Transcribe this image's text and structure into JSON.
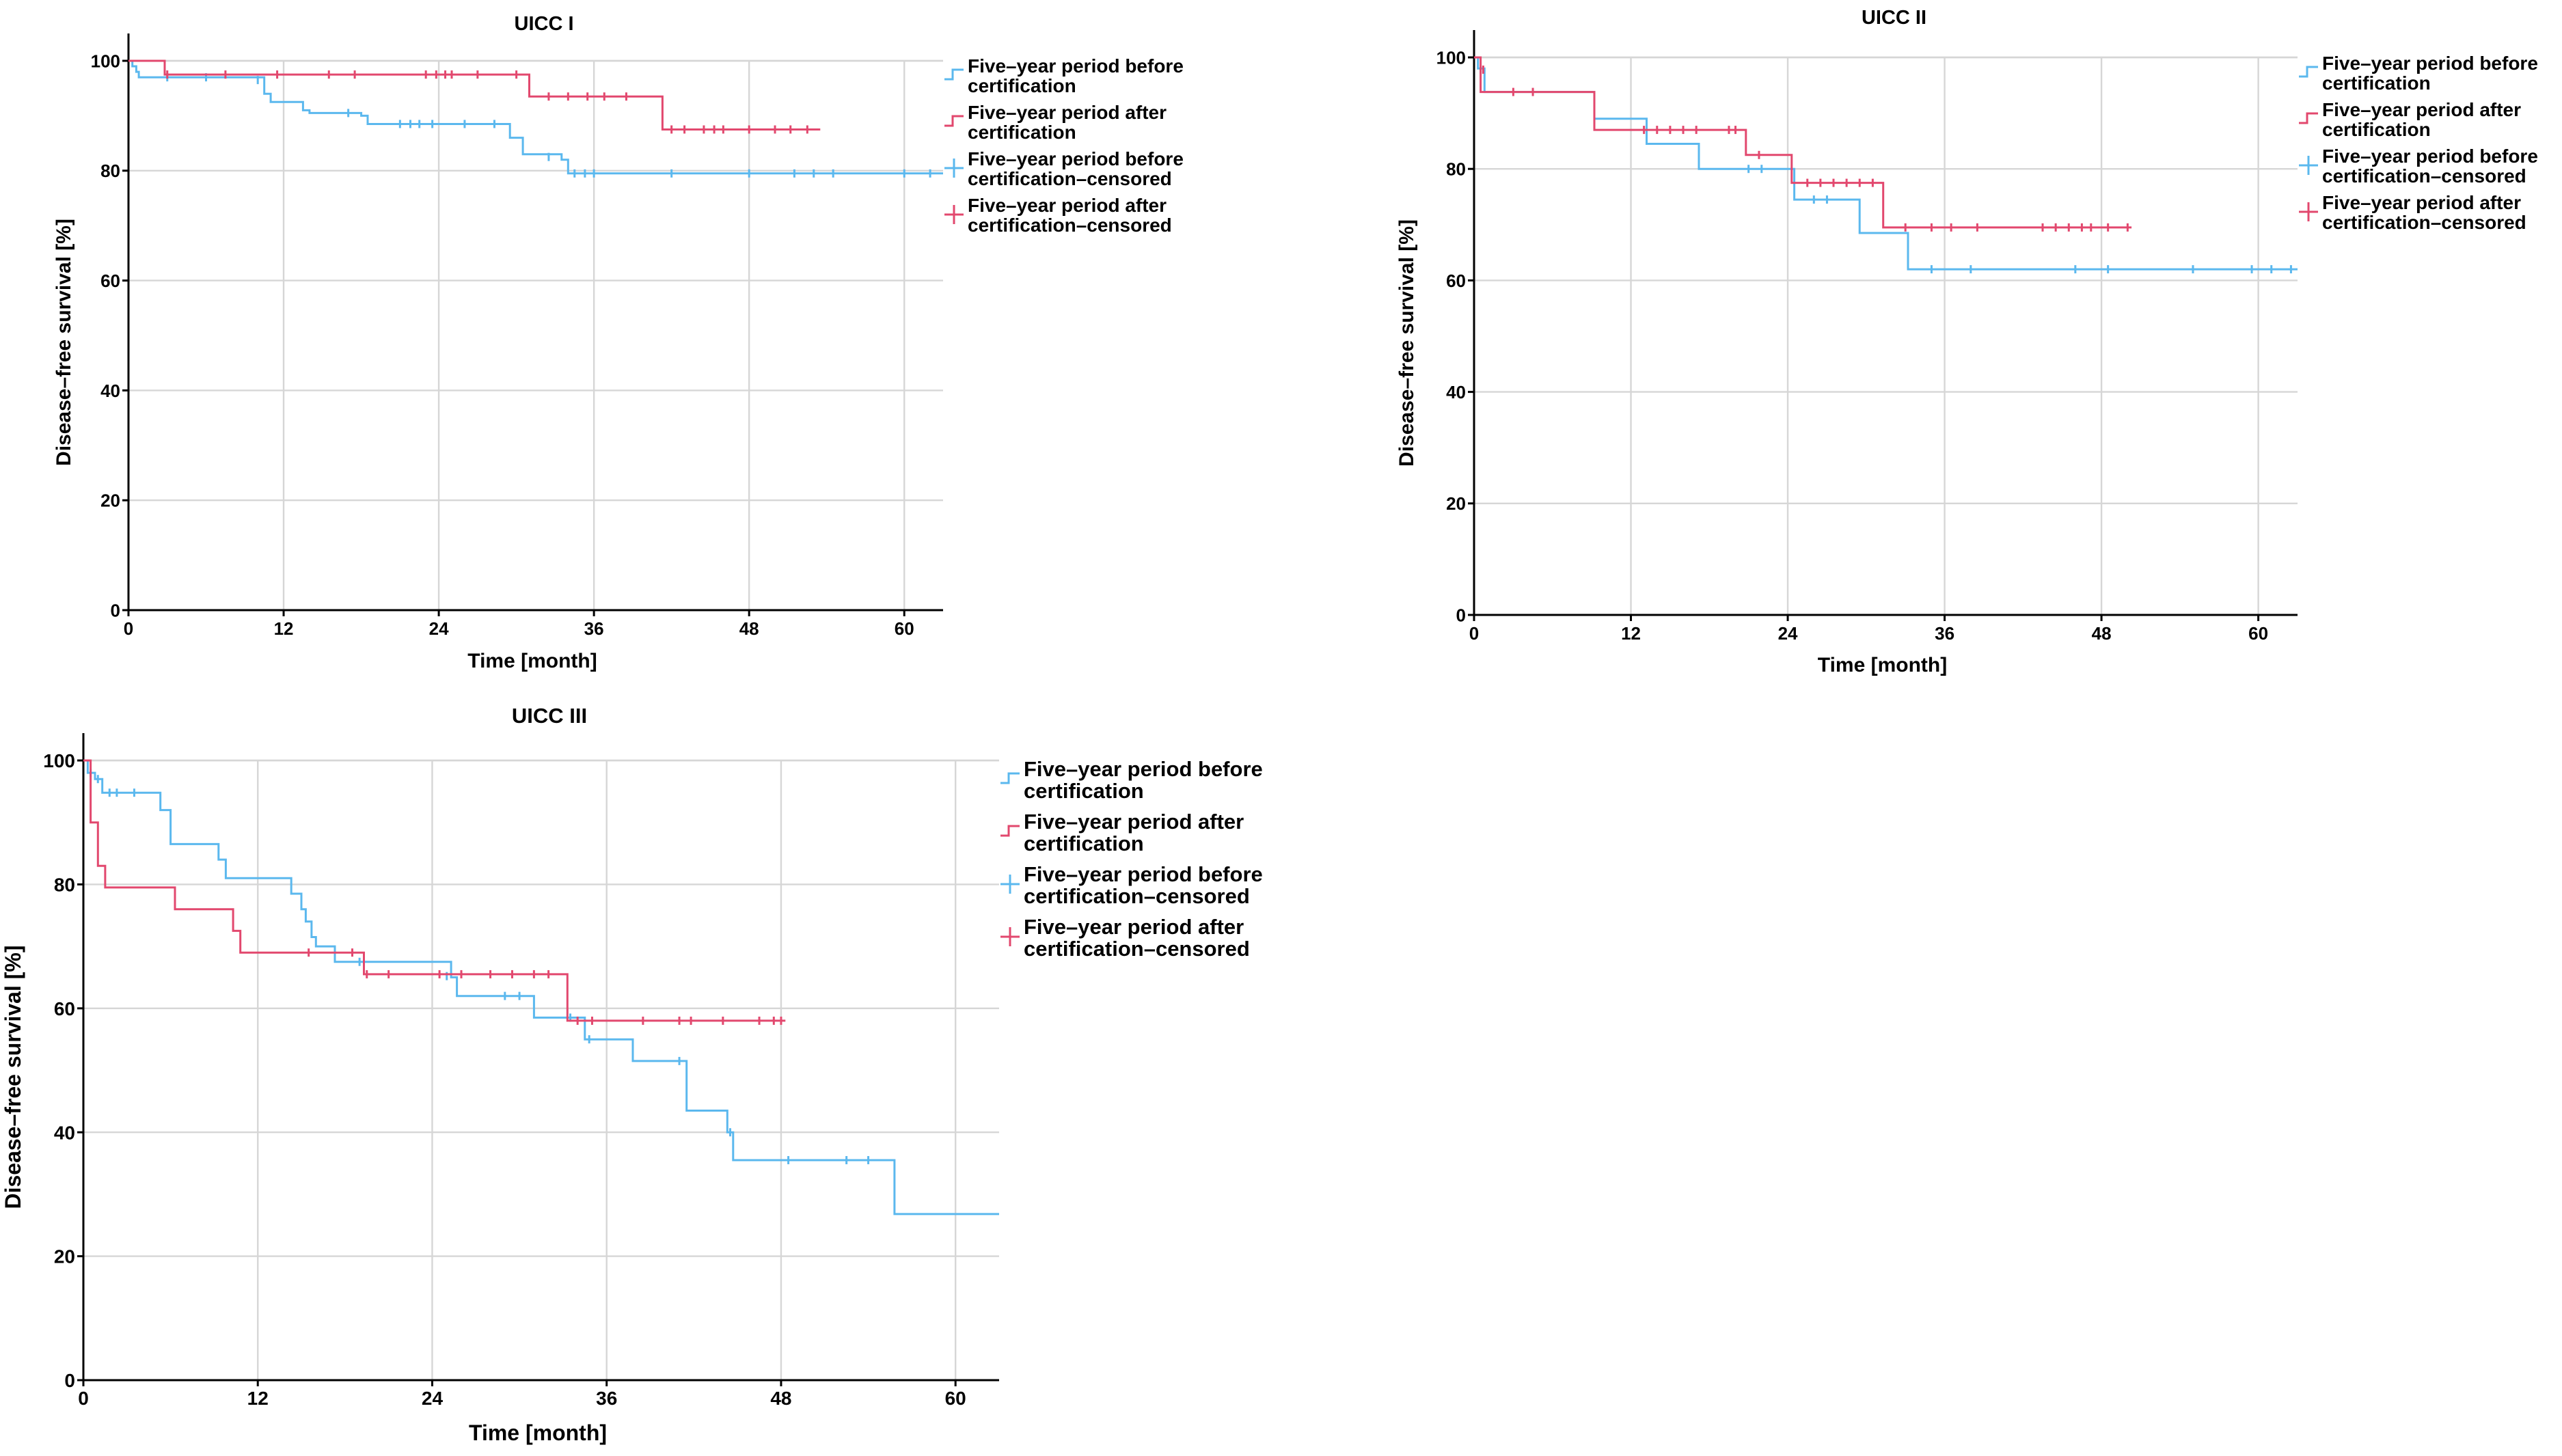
{
  "colors": {
    "before": "#5bb8ee",
    "after": "#e2486e"
  },
  "legend": [
    {
      "key": "before",
      "kind": "line",
      "lines": [
        "Five–year period before",
        "certification"
      ]
    },
    {
      "key": "after",
      "kind": "line",
      "lines": [
        "Five–year period after",
        "certification"
      ]
    },
    {
      "key": "before",
      "kind": "censor",
      "lines": [
        "Five–year period before",
        "certification–censored"
      ]
    },
    {
      "key": "after",
      "kind": "censor",
      "lines": [
        "Five–year period after",
        "certification–censored"
      ]
    }
  ],
  "chart_data": [
    {
      "type": "line",
      "title": "UICC I",
      "xlabel": "Time [month]",
      "ylabel": "Disease–free survival [%]",
      "xlim": [
        0,
        63
      ],
      "ylim": [
        0,
        100
      ],
      "xticks": [
        0,
        12,
        24,
        36,
        48,
        60
      ],
      "yticks": [
        0,
        20,
        40,
        60,
        80,
        100
      ],
      "grid": true,
      "legend_position": "right",
      "series": [
        {
          "name": "Five–year period before certification",
          "key": "before",
          "steps": [
            [
              0,
              100
            ],
            [
              0.3,
              99
            ],
            [
              0.6,
              98
            ],
            [
              0.8,
              97
            ],
            [
              9.5,
              97
            ],
            [
              10.5,
              94
            ],
            [
              11,
              92.5
            ],
            [
              13.5,
              91
            ],
            [
              14,
              90.5
            ],
            [
              18,
              90
            ],
            [
              18.5,
              88.5
            ],
            [
              28.5,
              88.5
            ],
            [
              29.5,
              86
            ],
            [
              30.5,
              83
            ],
            [
              33.5,
              82
            ],
            [
              34,
              79.5
            ],
            [
              63,
              79.5
            ]
          ],
          "censored": [
            [
              3,
              97
            ],
            [
              6,
              97
            ],
            [
              10,
              96.5
            ],
            [
              17,
              90.5
            ],
            [
              21,
              88.5
            ],
            [
              21.8,
              88.5
            ],
            [
              22.5,
              88.5
            ],
            [
              23.5,
              88.5
            ],
            [
              26,
              88.5
            ],
            [
              28.3,
              88.5
            ],
            [
              32.5,
              82.5
            ],
            [
              34.5,
              79.5
            ],
            [
              35.3,
              79.5
            ],
            [
              36,
              79.5
            ],
            [
              42,
              79.5
            ],
            [
              48,
              79.5
            ],
            [
              51.5,
              79.5
            ],
            [
              53,
              79.5
            ],
            [
              54.5,
              79.5
            ],
            [
              60,
              79.5
            ],
            [
              62,
              79.5
            ]
          ]
        },
        {
          "name": "Five–year period after certification",
          "key": "after",
          "steps": [
            [
              0,
              100
            ],
            [
              2.5,
              100
            ],
            [
              2.8,
              97.5
            ],
            [
              30.5,
              97.5
            ],
            [
              31,
              93.5
            ],
            [
              41,
              93.5
            ],
            [
              41.3,
              87.5
            ],
            [
              53.5,
              87.5
            ]
          ],
          "censored": [
            [
              3,
              97.5
            ],
            [
              7.5,
              97.5
            ],
            [
              11.5,
              97.5
            ],
            [
              15.5,
              97.5
            ],
            [
              17.5,
              97.5
            ],
            [
              23,
              97.5
            ],
            [
              23.8,
              97.5
            ],
            [
              24.5,
              97.5
            ],
            [
              25,
              97.5
            ],
            [
              27,
              97.5
            ],
            [
              30,
              97.5
            ],
            [
              32.5,
              93.5
            ],
            [
              34,
              93.5
            ],
            [
              35.5,
              93.5
            ],
            [
              36.8,
              93.5
            ],
            [
              38.5,
              93.5
            ],
            [
              42,
              87.5
            ],
            [
              43,
              87.5
            ],
            [
              44.5,
              87.5
            ],
            [
              45.3,
              87.5
            ],
            [
              46,
              87.5
            ],
            [
              48,
              87.5
            ],
            [
              50,
              87.5
            ],
            [
              51.2,
              87.5
            ],
            [
              52.5,
              87.5
            ]
          ]
        }
      ]
    },
    {
      "type": "line",
      "title": "UICC II",
      "xlabel": "Time [month]",
      "ylabel": "Disease–free survival [%]",
      "xlim": [
        0,
        63
      ],
      "ylim": [
        0,
        100
      ],
      "xticks": [
        0,
        12,
        24,
        36,
        48,
        60
      ],
      "yticks": [
        0,
        20,
        40,
        60,
        80,
        100
      ],
      "grid": true,
      "legend_position": "right",
      "series": [
        {
          "name": "Five–year period before certification",
          "key": "before",
          "steps": [
            [
              0,
              100
            ],
            [
              0.3,
              98
            ],
            [
              0.8,
              93.8
            ],
            [
              9,
              93.8
            ],
            [
              9.2,
              89
            ],
            [
              13,
              89
            ],
            [
              13.2,
              84.5
            ],
            [
              17,
              84.5
            ],
            [
              17.2,
              80
            ],
            [
              24.2,
              80
            ],
            [
              24.5,
              74.5
            ],
            [
              29.2,
              74.5
            ],
            [
              29.5,
              68.5
            ],
            [
              33,
              68.5
            ],
            [
              33.2,
              62
            ],
            [
              63,
              62
            ]
          ],
          "censored": [
            [
              0.5,
              97.8
            ],
            [
              21,
              80
            ],
            [
              22,
              80
            ],
            [
              26,
              74.5
            ],
            [
              27,
              74.5
            ],
            [
              35,
              62
            ],
            [
              38,
              62
            ],
            [
              46,
              62
            ],
            [
              48.5,
              62
            ],
            [
              55,
              62
            ],
            [
              59.5,
              62
            ],
            [
              61,
              62
            ],
            [
              62.5,
              62
            ]
          ]
        },
        {
          "name": "Five–year period after certification",
          "key": "after",
          "steps": [
            [
              0,
              100
            ],
            [
              0.5,
              93.8
            ],
            [
              9,
              93.8
            ],
            [
              9.2,
              87
            ],
            [
              20.5,
              87
            ],
            [
              20.8,
              82.5
            ],
            [
              24,
              82.5
            ],
            [
              24.3,
              77.5
            ],
            [
              31,
              77.5
            ],
            [
              31.3,
              69.5
            ],
            [
              50.3,
              69.5
            ]
          ],
          "censored": [
            [
              0.7,
              97.8
            ],
            [
              3,
              93.8
            ],
            [
              4.5,
              93.8
            ],
            [
              13,
              87
            ],
            [
              14,
              87
            ],
            [
              15,
              87
            ],
            [
              16,
              87
            ],
            [
              17,
              87
            ],
            [
              19.5,
              87
            ],
            [
              20,
              87
            ],
            [
              21.8,
              82.5
            ],
            [
              25.5,
              77.5
            ],
            [
              26.5,
              77.5
            ],
            [
              27.5,
              77.5
            ],
            [
              28.5,
              77.5
            ],
            [
              29.5,
              77.5
            ],
            [
              30.5,
              77.5
            ],
            [
              33,
              69.5
            ],
            [
              35,
              69.5
            ],
            [
              36.5,
              69.5
            ],
            [
              38.5,
              69.5
            ],
            [
              43.5,
              69.5
            ],
            [
              44.5,
              69.5
            ],
            [
              45.5,
              69.5
            ],
            [
              46.5,
              69.5
            ],
            [
              47.2,
              69.5
            ],
            [
              48.5,
              69.5
            ],
            [
              50,
              69.5
            ]
          ]
        }
      ]
    },
    {
      "type": "line",
      "title": "UICC III",
      "xlabel": "Time [month]",
      "ylabel": "Disease–free survival [%]",
      "xlim": [
        0,
        63
      ],
      "ylim": [
        0,
        100
      ],
      "xticks": [
        0,
        12,
        24,
        36,
        48,
        60
      ],
      "yticks": [
        0,
        20,
        40,
        60,
        80,
        100
      ],
      "grid": true,
      "legend_position": "right",
      "series": [
        {
          "name": "Five–year period before certification",
          "key": "before",
          "steps": [
            [
              0,
              100
            ],
            [
              0.3,
              98
            ],
            [
              0.8,
              97
            ],
            [
              1.3,
              94.8
            ],
            [
              5,
              94.8
            ],
            [
              5.3,
              92
            ],
            [
              6,
              86.5
            ],
            [
              9,
              86.5
            ],
            [
              9.3,
              84
            ],
            [
              9.8,
              81
            ],
            [
              14,
              81
            ],
            [
              14.3,
              78.5
            ],
            [
              15,
              76
            ],
            [
              15.3,
              74
            ],
            [
              15.7,
              71.5
            ],
            [
              16,
              70
            ],
            [
              17,
              70
            ],
            [
              17.3,
              67.5
            ],
            [
              25,
              67.5
            ],
            [
              25.3,
              65
            ],
            [
              25.7,
              62
            ],
            [
              30.5,
              62
            ],
            [
              31,
              58.5
            ],
            [
              34,
              58.5
            ],
            [
              34.5,
              55
            ],
            [
              37.5,
              55
            ],
            [
              37.8,
              51.5
            ],
            [
              41,
              51.5
            ],
            [
              41.5,
              43.5
            ],
            [
              44,
              43.5
            ],
            [
              44.3,
              40
            ],
            [
              44.7,
              35.5
            ],
            [
              55.5,
              35.5
            ],
            [
              55.8,
              26.8
            ],
            [
              63,
              26.8
            ]
          ],
          "censored": [
            [
              0.5,
              98
            ],
            [
              1,
              97
            ],
            [
              1.8,
              94.8
            ],
            [
              2.3,
              94.8
            ],
            [
              3.5,
              94.8
            ],
            [
              19,
              67.5
            ],
            [
              25,
              65.2
            ],
            [
              29,
              62
            ],
            [
              30,
              62
            ],
            [
              33.5,
              58.5
            ],
            [
              34.8,
              55
            ],
            [
              41,
              51.5
            ],
            [
              44.5,
              40
            ],
            [
              48.5,
              35.5
            ],
            [
              52.5,
              35.5
            ],
            [
              54,
              35.5
            ]
          ]
        },
        {
          "name": "Five–year period after certification",
          "key": "after",
          "steps": [
            [
              0,
              100
            ],
            [
              0.5,
              90
            ],
            [
              1,
              83
            ],
            [
              1.5,
              79.5
            ],
            [
              6,
              79.5
            ],
            [
              6.3,
              76
            ],
            [
              10,
              76
            ],
            [
              10.3,
              72.5
            ],
            [
              10.8,
              69
            ],
            [
              19,
              69
            ],
            [
              19.3,
              65.5
            ],
            [
              33,
              65.5
            ],
            [
              33.3,
              58
            ],
            [
              48.3,
              58
            ]
          ],
          "censored": [
            [
              15.5,
              69
            ],
            [
              18.5,
              69
            ],
            [
              19.5,
              65.5
            ],
            [
              21,
              65.5
            ],
            [
              24.5,
              65.5
            ],
            [
              26,
              65.5
            ],
            [
              28,
              65.5
            ],
            [
              29.5,
              65.5
            ],
            [
              31,
              65.5
            ],
            [
              32,
              65.5
            ],
            [
              34,
              58
            ],
            [
              35,
              58
            ],
            [
              38.5,
              58
            ],
            [
              41,
              58
            ],
            [
              41.8,
              58
            ],
            [
              44,
              58
            ],
            [
              46.5,
              58
            ],
            [
              47.5,
              58
            ],
            [
              48,
              58
            ]
          ]
        }
      ]
    }
  ]
}
